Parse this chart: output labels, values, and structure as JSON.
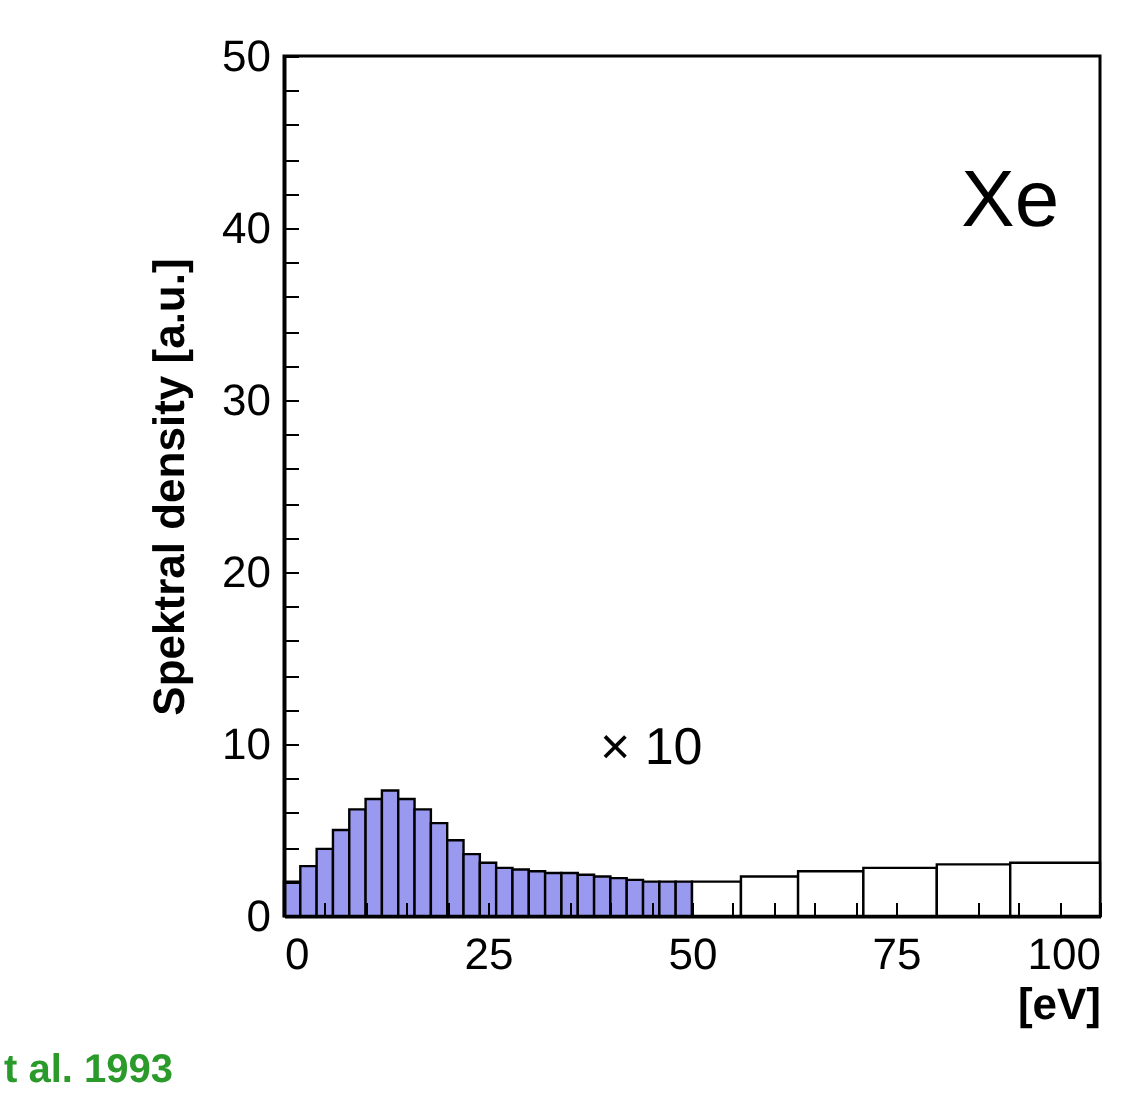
{
  "chart_data": {
    "type": "histogram",
    "ylabel": "Spektral density [a.u.]",
    "xlabel": "[eV]",
    "bins": [
      0,
      2,
      4,
      6,
      8,
      10,
      12,
      14,
      16,
      18,
      20,
      22,
      24,
      26,
      28,
      30,
      32,
      34,
      36,
      38,
      40,
      42,
      44,
      46,
      48,
      50,
      56,
      63,
      71,
      80,
      89,
      100
    ],
    "values": [
      2.0,
      2.9,
      3.9,
      5.0,
      6.2,
      6.8,
      7.3,
      6.8,
      6.2,
      5.4,
      4.4,
      3.6,
      3.1,
      2.8,
      2.7,
      2.6,
      2.5,
      2.5,
      2.4,
      2.3,
      2.2,
      2.1,
      2.0,
      2.0,
      2.0,
      2.0,
      2.3,
      2.6,
      2.8,
      3.0,
      3.1
    ],
    "colors": [
      "#9999f0",
      "#9999f0",
      "#9999f0",
      "#9999f0",
      "#9999f0",
      "#9999f0",
      "#9999f0",
      "#9999f0",
      "#9999f0",
      "#9999f0",
      "#9999f0",
      "#9999f0",
      "#9999f0",
      "#9999f0",
      "#9999f0",
      "#9999f0",
      "#9999f0",
      "#9999f0",
      "#9999f0",
      "#9999f0",
      "#9999f0",
      "#9999f0",
      "#9999f0",
      "#9999f0",
      "#9999f0",
      "#ffffff",
      "#ffffff",
      "#ffffff",
      "#ffffff",
      "#ffffff",
      "#ffffff"
    ],
    "xlim": [
      0,
      100
    ],
    "ylim": [
      0,
      50
    ],
    "xticks": [
      0,
      {
        "value": 5,
        "label": null
      },
      {
        "value": 10,
        "label": null
      },
      {
        "value": 15,
        "label": null
      },
      {
        "value": 20,
        "label": null
      },
      25,
      {
        "value": 30,
        "label": null
      },
      {
        "value": 35,
        "label": null
      },
      {
        "value": 40,
        "label": null
      },
      {
        "value": 45,
        "label": null
      },
      50,
      {
        "value": 55,
        "label": null
      },
      {
        "value": 60,
        "label": null
      },
      {
        "value": 65,
        "label": null
      },
      {
        "value": 70,
        "label": null
      },
      75,
      {
        "value": 80,
        "label": null
      },
      {
        "value": 85,
        "label": null
      },
      {
        "value": 90,
        "label": null
      },
      {
        "value": 95,
        "label": null
      },
      100
    ],
    "yticks": [
      0,
      {
        "value": 2,
        "label": null
      },
      {
        "value": 4,
        "label": null
      },
      {
        "value": 6,
        "label": null
      },
      {
        "value": 8,
        "label": null
      },
      10,
      {
        "value": 12,
        "label": null
      },
      {
        "value": 14,
        "label": null
      },
      {
        "value": 16,
        "label": null
      },
      {
        "value": 18,
        "label": null
      },
      20,
      {
        "value": 22,
        "label": null
      },
      {
        "value": 24,
        "label": null
      },
      {
        "value": 26,
        "label": null
      },
      {
        "value": 28,
        "label": null
      },
      30,
      {
        "value": 32,
        "label": null
      },
      {
        "value": 34,
        "label": null
      },
      {
        "value": 36,
        "label": null
      },
      {
        "value": 38,
        "label": null
      },
      40,
      {
        "value": 42,
        "label": null
      },
      {
        "value": 44,
        "label": null
      },
      {
        "value": 46,
        "label": null
      },
      {
        "value": 48,
        "label": null
      },
      50
    ],
    "annotations": [
      "Xe",
      "× 10",
      "t al. 1993"
    ],
    "grid": false
  }
}
